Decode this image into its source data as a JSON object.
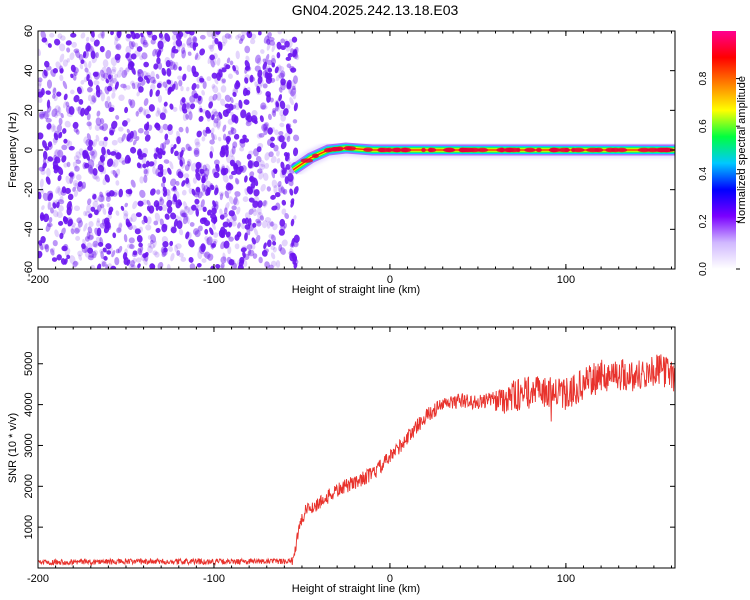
{
  "title": "GN04.2025.242.13.18.E03",
  "colors": {
    "snr_line": "#e8322c",
    "noise": "#6a14f0",
    "colorbar": [
      "#ffffff",
      "#d0b8ff",
      "#7a00ff",
      "#0000ff",
      "#00c8ff",
      "#00ff40",
      "#ffff00",
      "#ff8000",
      "#ff0000",
      "#ff0090"
    ]
  },
  "chart_data": [
    {
      "type": "heatmap",
      "xlabel": "Height of straight line (km)",
      "ylabel": "Frequency (Hz)",
      "xlim": [
        -200,
        162
      ],
      "ylim": [
        -60,
        60
      ],
      "xticks": [
        "-200",
        "-100",
        "0",
        "100"
      ],
      "xtick_values": [
        -200,
        -100,
        0,
        100
      ],
      "yticks": [
        "-60",
        "-40",
        "-20",
        "0",
        "20",
        "40",
        "60"
      ],
      "ytick_values": [
        -60,
        -40,
        -20,
        0,
        20,
        40,
        60
      ],
      "noise_region_x": [
        -200,
        -55
      ],
      "signal_track": {
        "x": [
          -55,
          -45,
          -35,
          -25,
          -10,
          0,
          162
        ],
        "y": [
          -10,
          -4,
          0,
          1,
          0,
          0,
          0
        ]
      },
      "colorbar": {
        "label": "Normalized spectral amplitude",
        "ticks": [
          "0.0",
          "0.2",
          "0.4",
          "0.6",
          "0.8"
        ],
        "tick_values": [
          0.0,
          0.2,
          0.4,
          0.6,
          0.8
        ],
        "range": [
          0,
          1
        ]
      }
    },
    {
      "type": "line",
      "xlabel": "Height of straight line (km)",
      "ylabel": "SNR (10 * v/v)",
      "xlim": [
        -200,
        162
      ],
      "ylim": [
        0,
        5900
      ],
      "xticks": [
        "-200",
        "-100",
        "0",
        "100"
      ],
      "xtick_values": [
        -200,
        -100,
        0,
        100
      ],
      "yticks": [
        "1000",
        "2000",
        "3000",
        "4000",
        "5000"
      ],
      "ytick_values": [
        1000,
        2000,
        3000,
        4000,
        5000
      ],
      "series": [
        {
          "x": [
            -200,
            -60,
            -55,
            -52,
            -48,
            -40,
            -30,
            -20,
            -10,
            0,
            10,
            20,
            30,
            40,
            50,
            60,
            70,
            80,
            90,
            100,
            110,
            120,
            130,
            140,
            150,
            160,
            162
          ],
          "y": [
            150,
            160,
            200,
            900,
            1400,
            1600,
            1900,
            2100,
            2300,
            2700,
            3200,
            3700,
            4000,
            4100,
            4050,
            4150,
            4200,
            4300,
            4300,
            4250,
            4500,
            4700,
            4750,
            4700,
            4850,
            4800,
            4500
          ]
        }
      ]
    }
  ]
}
